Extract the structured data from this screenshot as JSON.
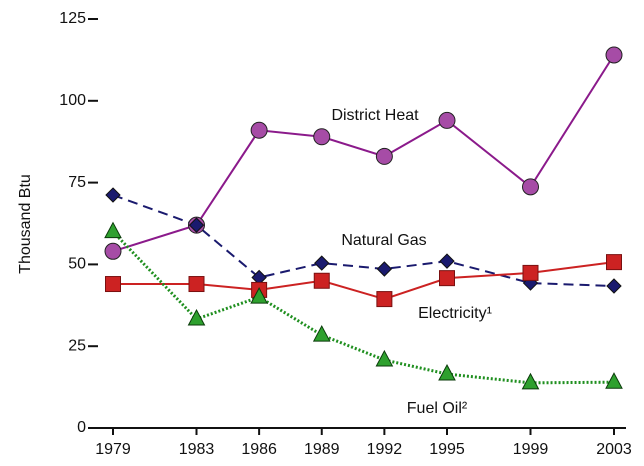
{
  "chart_data": {
    "type": "line",
    "y_label": "Thousand Btu",
    "x": [
      1979,
      1983,
      1986,
      1989,
      1992,
      1995,
      1999,
      2003
    ],
    "xlim": [
      1979,
      2003
    ],
    "xticks": [
      1979,
      1983,
      1986,
      1989,
      1992,
      1995,
      1999,
      2003
    ],
    "ylim": [
      0,
      125
    ],
    "yticks": [
      0,
      25,
      50,
      75,
      100,
      125
    ],
    "series": [
      {
        "name": "District Heat",
        "color": "#8b1a8b",
        "marker": "circle",
        "line": "solid",
        "values": [
          54,
          62,
          91,
          89,
          83,
          94,
          73.7,
          114
        ]
      },
      {
        "name": "Natural Gas",
        "color": "#1a1a6e",
        "marker": "diamond",
        "line": "dashed",
        "values": [
          71.2,
          62,
          46,
          50.4,
          48.6,
          51,
          44.3,
          43.4
        ]
      },
      {
        "name": "Electricity¹",
        "color": "#cc2222",
        "marker": "square",
        "line": "solid",
        "values": [
          44,
          44,
          42.2,
          45,
          39.4,
          45.8,
          47.4,
          50.7
        ]
      },
      {
        "name": "Fuel Oil²",
        "color": "#1f8f1f",
        "marker": "triangle",
        "line": "dotted",
        "values": [
          60,
          33.3,
          40,
          28.4,
          20.8,
          16.5,
          13.8,
          14
        ]
      }
    ]
  }
}
